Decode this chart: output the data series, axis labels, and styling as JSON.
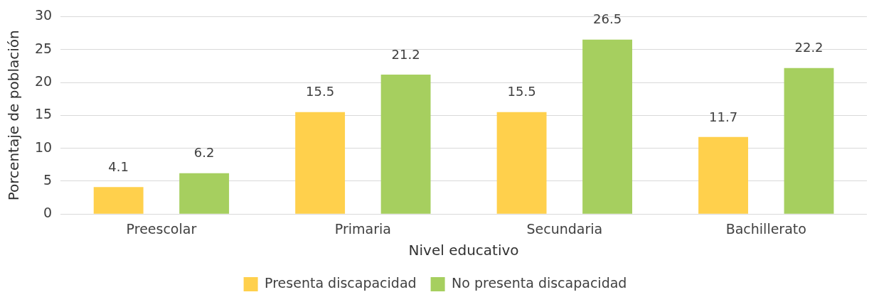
{
  "chart_data": {
    "type": "bar",
    "xlabel": "Nivel educativo",
    "ylabel": "Porcentaje de población",
    "categories": [
      "Preescolar",
      "Primaria",
      "Secundaria",
      "Bachillerato"
    ],
    "series": [
      {
        "name": "Presenta discapacidad",
        "color": "#ffd04c",
        "values": [
          4.1,
          15.5,
          15.5,
          11.7
        ]
      },
      {
        "name": "No presenta discapacidad",
        "color": "#a6cf5f",
        "values": [
          6.2,
          21.2,
          26.5,
          22.2
        ]
      }
    ],
    "ylim": [
      0,
      30
    ],
    "yticks": [
      0,
      5,
      10,
      15,
      20,
      25,
      30
    ],
    "grid": "y",
    "legend": "bottom",
    "data_labels": true
  }
}
